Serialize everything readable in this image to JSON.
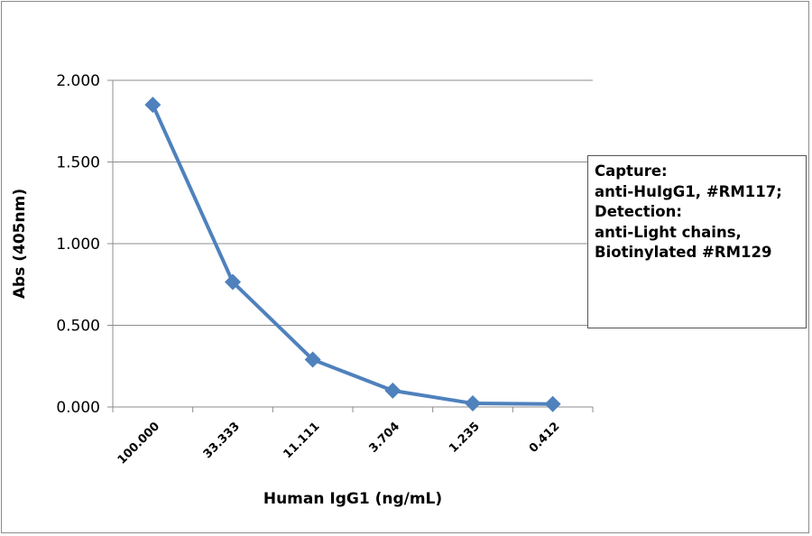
{
  "chart_data": {
    "type": "line",
    "title": "",
    "xlabel": "Human IgG1 (ng/mL)",
    "ylabel": "Abs (405nm)",
    "categories": [
      "100.000",
      "33.333",
      "11.111",
      "3.704",
      "1.235",
      "0.412"
    ],
    "series": [
      {
        "name": "Abs",
        "color": "#4f81bd",
        "values": [
          1.85,
          0.765,
          0.29,
          0.1,
          0.022,
          0.018
        ]
      }
    ],
    "ylim": [
      0,
      2
    ],
    "yticks": [
      "0.000",
      "0.500",
      "1.000",
      "1.500",
      "2.000"
    ],
    "grid": true,
    "legend_placement": "right",
    "legend_lines": [
      "Capture:",
      "anti-HuIgG1, #RM117;",
      "Detection:",
      "anti-Light chains,",
      "Biotinylated #RM129"
    ]
  }
}
